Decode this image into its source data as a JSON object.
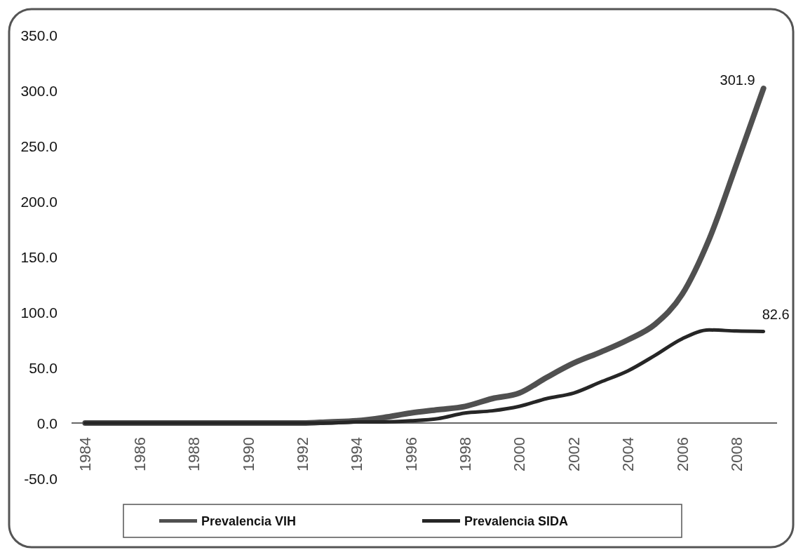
{
  "chart_data": {
    "type": "line",
    "categories": [
      "1984",
      null,
      "1986",
      null,
      "1988",
      null,
      "1990",
      null,
      "1992",
      null,
      "1994",
      null,
      "1996",
      null,
      "1998",
      null,
      "2000",
      null,
      "2002",
      null,
      "2004",
      null,
      "2006",
      null,
      "2008",
      null
    ],
    "ylim": [
      -50,
      350
    ],
    "yticks": [
      {
        "value": -50,
        "label": "-50.0"
      },
      {
        "value": 0,
        "label": "0.0"
      },
      {
        "value": 50,
        "label": "50.0"
      },
      {
        "value": 100,
        "label": "100.0"
      },
      {
        "value": 150,
        "label": "150.0"
      },
      {
        "value": 200,
        "label": "200.0"
      },
      {
        "value": 250,
        "label": "250.0"
      },
      {
        "value": 300,
        "label": "300.0"
      },
      {
        "value": 350,
        "label": "350.0"
      }
    ],
    "series": [
      {
        "name": "Prevalencia VIH",
        "color": "#505050",
        "values": [
          0,
          0,
          0,
          0,
          0,
          0,
          0,
          0,
          0,
          1,
          2,
          5,
          9,
          12,
          15,
          22,
          27,
          41,
          54,
          64,
          75,
          89,
          116,
          166,
          233,
          301.9
        ],
        "value_labels": [
          null,
          null,
          null,
          null,
          null,
          null,
          null,
          null,
          null,
          null,
          null,
          null,
          null,
          null,
          null,
          null,
          null,
          null,
          null,
          null,
          null,
          null,
          null,
          null,
          null,
          "301.9"
        ]
      },
      {
        "name": "Prevalencia SIDA",
        "color": "#262626",
        "values": [
          0,
          0,
          0,
          0,
          0,
          0,
          0,
          0,
          0,
          0,
          1,
          1,
          2,
          4,
          9,
          11,
          15,
          22,
          27,
          37,
          47,
          61,
          76,
          84,
          83,
          82.6
        ],
        "value_labels": [
          null,
          null,
          null,
          null,
          null,
          null,
          null,
          null,
          null,
          null,
          null,
          null,
          null,
          null,
          null,
          null,
          null,
          null,
          null,
          null,
          null,
          null,
          null,
          null,
          null,
          "82.6"
        ]
      }
    ],
    "legend": "bottom"
  }
}
